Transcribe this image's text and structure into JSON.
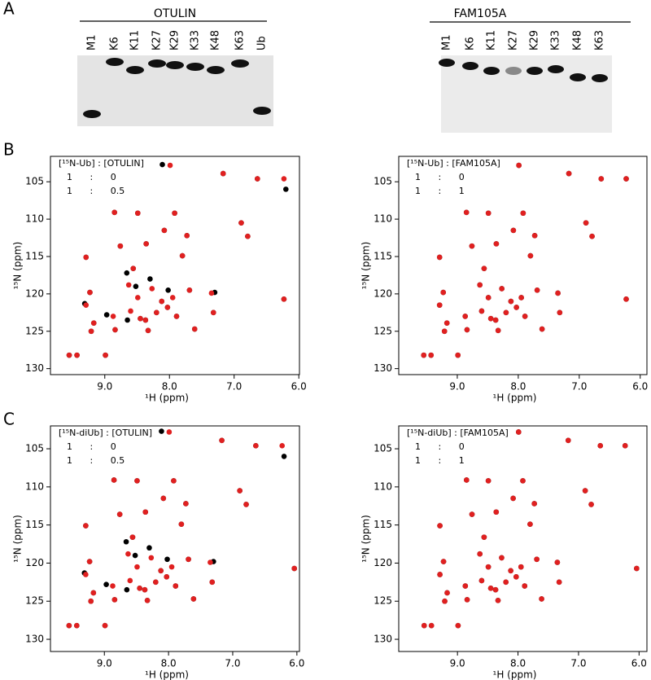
{
  "panel_a": {
    "label": "A",
    "gels": [
      {
        "title": "OTULIN",
        "lanes": [
          "M1",
          "K6",
          "K11",
          "K27",
          "K29",
          "K33",
          "K48",
          "K63",
          "Ub"
        ]
      },
      {
        "title": "FAM105A",
        "lanes": [
          "M1",
          "K6",
          "K11",
          "K27",
          "K29",
          "K33",
          "K48",
          "K63"
        ]
      }
    ]
  },
  "panel_labels": [
    "B",
    "C"
  ],
  "chart_data": [
    {
      "type": "scatter",
      "legend_title": "[¹⁵N-Ub] : [OTULIN]",
      "x_label": "¹H (ppm)",
      "y_label": "¹⁵N (ppm)",
      "xlim": [
        9.84,
        5.99
      ],
      "ylim": [
        130.8,
        101.6
      ],
      "xticks": [
        {
          "value": 9,
          "label": "9.0"
        },
        {
          "value": 8,
          "label": "8.0"
        },
        {
          "value": 7,
          "label": "7.0"
        },
        {
          "value": 6,
          "label": "6.0"
        }
      ],
      "yticks": [
        105,
        110,
        115,
        120,
        125,
        130
      ],
      "series": [
        {
          "name": "1 : 0",
          "color": "#000000",
          "x": [
            9.55,
            9.43,
            8.99,
            9.21,
            9.17,
            9.31,
            9.29,
            9.23,
            8.97,
            8.84,
            8.66,
            8.65,
            8.52,
            8.45,
            8.37,
            8.33,
            8.3,
            8.2,
            8.12,
            8.03,
            8.02,
            7.89,
            7.8,
            7.69,
            7.61,
            7.3,
            7.32,
            8.76,
            8.56,
            8.36,
            8.08,
            7.92,
            7.73,
            8.85,
            8.49,
            8.11,
            7.17,
            6.64,
            6.2,
            6.89,
            6.79,
            6.23
          ],
          "y": [
            128.2,
            128.2,
            128.2,
            125.0,
            123.9,
            121.3,
            115.1,
            119.8,
            122.8,
            124.8,
            117.2,
            123.5,
            119.0,
            123.3,
            123.5,
            124.9,
            118.0,
            122.5,
            121.0,
            121.8,
            119.5,
            123.0,
            114.9,
            119.5,
            124.7,
            119.8,
            122.5,
            113.6,
            116.6,
            113.3,
            111.5,
            109.2,
            112.2,
            109.1,
            109.2,
            102.7,
            103.9,
            104.6,
            106.0,
            110.5,
            112.3,
            120.7
          ]
        },
        {
          "name": "1 : 0.5",
          "color": "#e02020",
          "x": [
            9.55,
            9.43,
            8.99,
            9.21,
            9.17,
            9.29,
            9.29,
            9.23,
            8.87,
            8.84,
            8.63,
            8.6,
            8.49,
            8.45,
            8.37,
            8.33,
            8.27,
            8.2,
            8.12,
            8.03,
            7.95,
            7.89,
            7.8,
            7.69,
            7.61,
            7.35,
            7.32,
            8.76,
            8.56,
            8.36,
            8.08,
            7.92,
            7.73,
            8.85,
            8.49,
            7.99,
            7.17,
            6.64,
            6.23,
            6.89,
            6.79,
            6.23
          ],
          "y": [
            128.2,
            128.2,
            128.2,
            125.0,
            123.9,
            121.5,
            115.1,
            119.8,
            123.0,
            124.8,
            118.8,
            122.3,
            120.5,
            123.3,
            123.5,
            124.9,
            119.3,
            122.5,
            121.0,
            121.8,
            120.5,
            123.0,
            114.9,
            119.5,
            124.7,
            119.9,
            122.5,
            113.6,
            116.6,
            113.3,
            111.5,
            109.2,
            112.2,
            109.1,
            109.2,
            102.8,
            103.9,
            104.6,
            104.6,
            110.5,
            112.3,
            120.7
          ]
        }
      ]
    },
    {
      "type": "scatter",
      "legend_title": "[¹⁵N-Ub] : [FAM105A]",
      "x_label": "¹H (ppm)",
      "y_label": "¹⁵N (ppm)",
      "xlim": [
        9.96,
        5.89
      ],
      "ylim": [
        130.8,
        101.6
      ],
      "xticks": [
        {
          "value": 9,
          "label": "9.0"
        },
        {
          "value": 8,
          "label": "8.0"
        },
        {
          "value": 7,
          "label": "7.0"
        },
        {
          "value": 6,
          "label": "6.0"
        }
      ],
      "yticks": [
        105,
        110,
        115,
        120,
        125,
        130
      ],
      "series": [
        {
          "name": "1 : 0",
          "color": "#000000",
          "x": [
            9.55,
            9.43,
            8.99,
            9.21,
            9.17,
            9.29,
            9.29,
            9.23,
            8.87,
            8.84,
            8.63,
            8.6,
            8.49,
            8.45,
            8.37,
            8.33,
            8.27,
            8.2,
            8.12,
            8.03,
            7.95,
            7.89,
            7.8,
            7.69,
            7.61,
            7.35,
            7.32,
            8.76,
            8.56,
            8.36,
            8.08,
            7.92,
            7.73,
            8.85,
            8.49,
            7.99,
            7.17,
            6.64,
            6.23,
            6.89,
            6.79,
            6.23
          ],
          "y": [
            128.2,
            128.2,
            128.2,
            125.0,
            123.9,
            121.5,
            115.1,
            119.8,
            123.0,
            124.8,
            118.8,
            122.3,
            120.5,
            123.3,
            123.5,
            124.9,
            119.3,
            122.5,
            121.0,
            121.8,
            120.5,
            123.0,
            114.9,
            119.5,
            124.7,
            119.9,
            122.5,
            113.6,
            116.6,
            113.3,
            111.5,
            109.2,
            112.2,
            109.1,
            109.2,
            102.8,
            103.9,
            104.6,
            104.6,
            110.5,
            112.3,
            120.7
          ]
        },
        {
          "name": "1 : 1",
          "color": "#e02020",
          "x": [
            9.55,
            9.43,
            8.99,
            9.21,
            9.17,
            9.29,
            9.29,
            9.23,
            8.87,
            8.84,
            8.63,
            8.6,
            8.49,
            8.45,
            8.37,
            8.33,
            8.27,
            8.2,
            8.12,
            8.03,
            7.95,
            7.89,
            7.8,
            7.69,
            7.61,
            7.35,
            7.32,
            8.76,
            8.56,
            8.36,
            8.08,
            7.92,
            7.73,
            8.85,
            8.49,
            7.99,
            7.17,
            6.64,
            6.23,
            6.89,
            6.79,
            6.23
          ],
          "y": [
            128.2,
            128.2,
            128.2,
            125.0,
            123.9,
            121.5,
            115.1,
            119.8,
            123.0,
            124.8,
            118.8,
            122.3,
            120.5,
            123.3,
            123.5,
            124.9,
            119.3,
            122.5,
            121.0,
            121.8,
            120.5,
            123.0,
            114.9,
            119.5,
            124.7,
            119.9,
            122.5,
            113.6,
            116.6,
            113.3,
            111.5,
            109.2,
            112.2,
            109.1,
            109.2,
            102.8,
            103.9,
            104.6,
            104.6,
            110.5,
            112.3,
            120.7
          ]
        }
      ]
    },
    {
      "type": "scatter",
      "legend_title": "[¹⁵N-diUb] : [OTULIN]",
      "x_label": "¹H (ppm)",
      "y_label": "¹⁵N (ppm)",
      "xlim": [
        9.84,
        5.96
      ],
      "ylim": [
        131.6,
        102.0
      ],
      "xticks": [
        {
          "value": 9,
          "label": "9.0"
        },
        {
          "value": 8,
          "label": "8.0"
        },
        {
          "value": 7,
          "label": "7.0"
        },
        {
          "value": 6,
          "label": "6.0"
        }
      ],
      "yticks": [
        105,
        110,
        115,
        120,
        125,
        130
      ],
      "series": [
        {
          "name": "1 : 0",
          "color": "#000000",
          "x": [
            9.55,
            9.43,
            8.99,
            9.21,
            9.17,
            9.31,
            9.29,
            9.23,
            8.97,
            8.84,
            8.66,
            8.65,
            8.52,
            8.45,
            8.37,
            8.33,
            8.3,
            8.2,
            8.12,
            8.03,
            8.02,
            7.89,
            7.8,
            7.69,
            7.61,
            7.3,
            7.32,
            8.76,
            8.56,
            8.36,
            8.08,
            7.92,
            7.73,
            8.85,
            8.49,
            8.11,
            7.17,
            6.64,
            6.2,
            6.89,
            6.79,
            6.04
          ],
          "y": [
            128.2,
            128.2,
            128.2,
            125.0,
            123.9,
            121.3,
            115.1,
            119.8,
            122.8,
            124.8,
            117.2,
            123.5,
            119.0,
            123.3,
            123.5,
            124.9,
            118.0,
            122.5,
            121.0,
            121.8,
            119.5,
            123.0,
            114.9,
            119.5,
            124.7,
            119.8,
            122.5,
            113.6,
            116.6,
            113.3,
            111.5,
            109.2,
            112.2,
            109.1,
            109.2,
            102.7,
            103.9,
            104.6,
            106.0,
            110.5,
            112.3,
            120.7
          ]
        },
        {
          "name": "1 : 0.5",
          "color": "#e02020",
          "x": [
            9.55,
            9.43,
            8.99,
            9.21,
            9.17,
            9.29,
            9.29,
            9.23,
            8.87,
            8.84,
            8.63,
            8.6,
            8.49,
            8.45,
            8.37,
            8.33,
            8.27,
            8.2,
            8.12,
            8.03,
            7.95,
            7.89,
            7.8,
            7.69,
            7.61,
            7.35,
            7.32,
            8.76,
            8.56,
            8.36,
            8.08,
            7.92,
            7.73,
            8.85,
            8.49,
            7.99,
            7.17,
            6.64,
            6.23,
            6.89,
            6.79,
            6.04
          ],
          "y": [
            128.2,
            128.2,
            128.2,
            125.0,
            123.9,
            121.5,
            115.1,
            119.8,
            123.0,
            124.8,
            118.8,
            122.3,
            120.5,
            123.3,
            123.5,
            124.9,
            119.3,
            122.5,
            121.0,
            121.8,
            120.5,
            123.0,
            114.9,
            119.5,
            124.7,
            119.9,
            122.5,
            113.6,
            116.6,
            113.3,
            111.5,
            109.2,
            112.2,
            109.1,
            109.2,
            102.8,
            103.9,
            104.6,
            104.6,
            110.5,
            112.3,
            120.7
          ]
        }
      ]
    },
    {
      "type": "scatter",
      "legend_title": "[¹⁵N-diUb] : [FAM105A]",
      "x_label": "¹H (ppm)",
      "y_label": "¹⁵N (ppm)",
      "xlim": [
        9.97,
        5.87
      ],
      "ylim": [
        131.6,
        102.0
      ],
      "xticks": [
        {
          "value": 9,
          "label": "9.0"
        },
        {
          "value": 8,
          "label": "8.0"
        },
        {
          "value": 7,
          "label": "7.0"
        },
        {
          "value": 6,
          "label": "6.0"
        }
      ],
      "yticks": [
        105,
        110,
        115,
        120,
        125,
        130
      ],
      "series": [
        {
          "name": "1 : 0",
          "color": "#000000",
          "x": [
            9.55,
            9.43,
            8.99,
            9.21,
            9.17,
            9.29,
            9.29,
            9.23,
            8.87,
            8.84,
            8.63,
            8.6,
            8.49,
            8.45,
            8.37,
            8.33,
            8.27,
            8.2,
            8.12,
            8.03,
            7.95,
            7.89,
            7.8,
            7.69,
            7.61,
            7.35,
            7.32,
            8.76,
            8.56,
            8.36,
            8.08,
            7.92,
            7.73,
            8.85,
            8.49,
            7.99,
            7.17,
            6.64,
            6.23,
            6.89,
            6.79,
            6.04
          ],
          "y": [
            128.2,
            128.2,
            128.2,
            125.0,
            123.9,
            121.5,
            115.1,
            119.8,
            123.0,
            124.8,
            118.8,
            122.3,
            120.5,
            123.3,
            123.5,
            124.9,
            119.3,
            122.5,
            121.0,
            121.8,
            120.5,
            123.0,
            114.9,
            119.5,
            124.7,
            119.9,
            122.5,
            113.6,
            116.6,
            113.3,
            111.5,
            109.2,
            112.2,
            109.1,
            109.2,
            102.8,
            103.9,
            104.6,
            104.6,
            110.5,
            112.3,
            120.7
          ]
        },
        {
          "name": "1 : 1",
          "color": "#e02020",
          "x": [
            9.55,
            9.43,
            8.99,
            9.21,
            9.17,
            9.29,
            9.29,
            9.23,
            8.87,
            8.84,
            8.63,
            8.6,
            8.49,
            8.45,
            8.37,
            8.33,
            8.27,
            8.2,
            8.12,
            8.03,
            7.95,
            7.89,
            7.8,
            7.69,
            7.61,
            7.35,
            7.32,
            8.76,
            8.56,
            8.36,
            8.08,
            7.92,
            7.73,
            8.85,
            8.49,
            7.99,
            7.17,
            6.64,
            6.23,
            6.89,
            6.79,
            6.04
          ],
          "y": [
            128.2,
            128.2,
            128.2,
            125.0,
            123.9,
            121.5,
            115.1,
            119.8,
            123.0,
            124.8,
            118.8,
            122.3,
            120.5,
            123.3,
            123.5,
            124.9,
            119.3,
            122.5,
            121.0,
            121.8,
            120.5,
            123.0,
            114.9,
            119.5,
            124.7,
            119.9,
            122.5,
            113.6,
            116.6,
            113.3,
            111.5,
            109.2,
            112.2,
            109.1,
            109.2,
            102.8,
            103.9,
            104.6,
            104.6,
            110.5,
            112.3,
            120.7
          ]
        }
      ]
    }
  ]
}
